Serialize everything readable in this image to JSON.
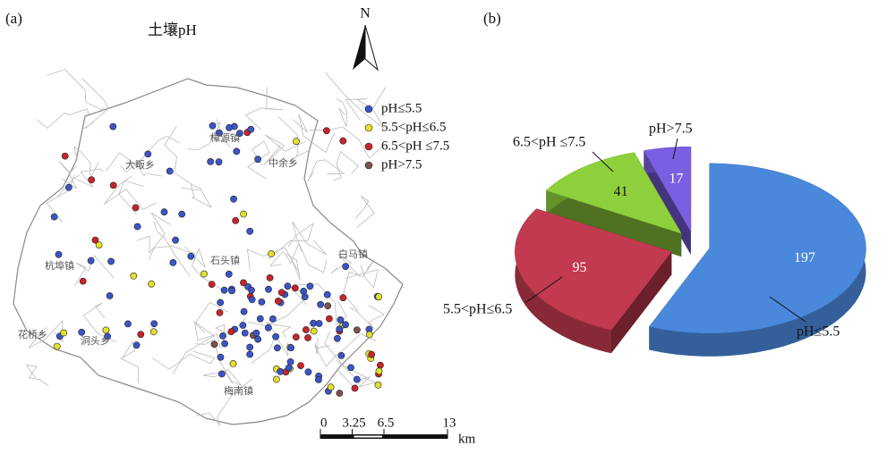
{
  "panel_a": {
    "label": "(a)",
    "title": "土壤pH",
    "north": "N",
    "legend_colors": [
      "#3b55c9",
      "#e3e02a",
      "#c8242a",
      "#7a5250"
    ],
    "place_names": [
      "樟源镇",
      "大畈乡",
      "中余乡",
      "杭埠镇",
      "石头镇",
      "白马镇",
      "花桥乡",
      "洞头乡",
      "梅南镇"
    ],
    "scale_ticks": [
      0,
      3.25,
      6.5,
      13
    ],
    "scale_unit": "km"
  },
  "chart_data": {
    "type": "pie",
    "panel_label": "(b)",
    "categories": [
      "pH≤5.5",
      "5.5<pH≤6.5",
      "6.5<pH ≤7.5",
      "pH>7.5"
    ],
    "values": [
      197,
      95,
      41,
      17
    ],
    "colors": [
      "#4a88dc",
      "#c23a4f",
      "#8ed03c",
      "#7b5fe3"
    ],
    "value_label_colors": [
      "#ffffff",
      "#ffffff",
      "#111111",
      "#ffffff"
    ]
  }
}
